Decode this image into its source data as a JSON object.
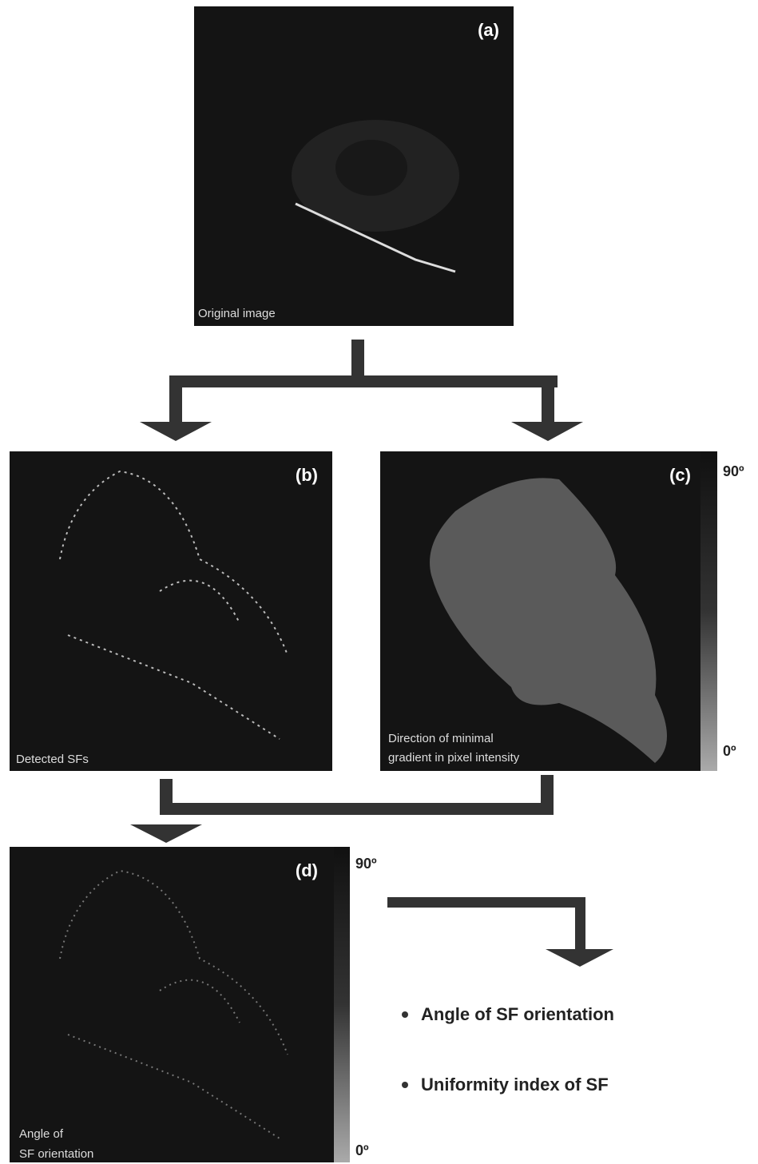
{
  "panels": [
    {
      "tag": "(a)",
      "caption": [
        "Original image"
      ]
    },
    {
      "tag": "(b)",
      "caption": [
        "Detected SFs"
      ]
    },
    {
      "tag": "(c)",
      "caption": [
        "Direction of minimal",
        "gradient in pixel intensity"
      ],
      "scale": {
        "max": "90º",
        "min": "0º"
      }
    },
    {
      "tag": "(d)",
      "caption": [
        "Angle of",
        "SF orientation"
      ],
      "scale": {
        "max": "90º",
        "min": "0º"
      }
    }
  ],
  "outputs": [
    "Angle of SF orientation",
    "Uniformity index of SF"
  ]
}
